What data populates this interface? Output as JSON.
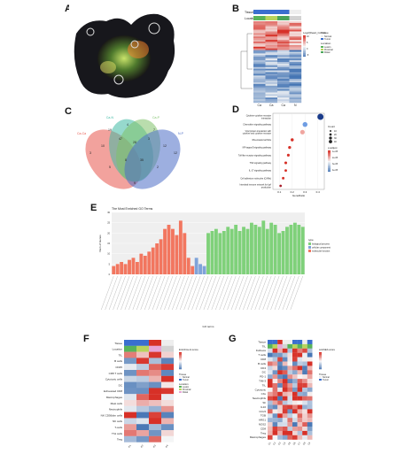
{
  "panels": {
    "a": {
      "letter": "A"
    },
    "b": {
      "letter": "B",
      "row_labels": [
        "Tissue",
        "Location"
      ],
      "col_labels": [
        "Ca",
        "Ca",
        "Ca",
        "N"
      ],
      "legend_title": "Log2(Read_Count)",
      "legend_groups": [
        {
          "title": "Tissue",
          "items": [
            "Normal",
            "Tumor"
          ]
        },
        {
          "title": "Location",
          "items": [
            "Lesion",
            "Proximal",
            "Distal"
          ]
        }
      ],
      "legend_ticks": [
        "10",
        "5",
        "0",
        "-5"
      ]
    },
    "c": {
      "letter": "C",
      "set_labels": [
        "Ca-Ca",
        "Ca-N",
        "Ca-P",
        "N-P"
      ],
      "counts": [
        "3",
        "19",
        "4",
        "7",
        "12",
        "10",
        "47",
        "28",
        "3",
        "12",
        "5",
        "8",
        "35",
        "2",
        "9"
      ]
    },
    "d": {
      "letter": "D",
      "terms": [
        "Cytokine-cytokine receptor interaction",
        "Chemokine signaling pathway",
        "Viral protein interaction with cytokine and cytokine receptor",
        "Rheumatoid arthritis",
        "NF-kappa B signaling pathway",
        "Toll-like receptor signaling pathway",
        "TNF signaling pathway",
        "IL-17 signaling pathway",
        "Cell adhesion molecules (CAMs)",
        "Intestinal immune network for IgA production"
      ],
      "gene_ratio": [
        0.42,
        0.3,
        0.28,
        0.2,
        0.18,
        0.17,
        0.15,
        0.15,
        0.13,
        0.11
      ],
      "count": [
        40,
        25,
        22,
        10,
        9,
        8,
        8,
        7,
        7,
        6
      ],
      "xlabel": "GeneRatio",
      "xticks": [
        "0.1",
        "0.2",
        "0.3",
        "0.4"
      ],
      "size_legend_title": "Count",
      "size_legend": [
        "10",
        "20",
        "30",
        "40"
      ],
      "color_legend_title": "p.adjust",
      "color_legend": [
        "1e-05",
        "2e-05",
        "3e-05",
        "4e-05"
      ]
    },
    "e": {
      "letter": "E",
      "title": "The Most Enriched GO Terms",
      "xlabel": "GO terms",
      "ylabel": "Num of Genes",
      "legend_title": "type",
      "legend_items": [
        "biological process",
        "cellular component",
        "molecular function"
      ],
      "yticks": [
        "0",
        "5",
        "10",
        "15",
        "20",
        "25",
        "30"
      ]
    },
    "f": {
      "letter": "F",
      "row_labels": [
        "Tissue",
        "Location",
        "TIL",
        "B cells",
        "CD45",
        "CD8 T cells",
        "Cytotoxic cells",
        "DC",
        "Exhausted CD8",
        "Macrophages",
        "Mast cells",
        "Neutrophils",
        "NK CD56dim cells",
        "NK cells",
        "T-cells",
        "Th1 cells",
        "Treg"
      ],
      "col_labels": [
        "P1",
        "P2",
        "P3",
        "P4"
      ],
      "legend_title": "Enrichment score",
      "legend_groups": [
        {
          "title": "Tissue",
          "items": [
            "Normal",
            "Tumor"
          ]
        },
        {
          "title": "Location",
          "items": [
            "Lesion",
            "Proximal",
            "Distal"
          ]
        }
      ]
    },
    "g": {
      "letter": "G",
      "row_labels": [
        "Tissue",
        "TIL",
        "Fullness",
        "T cells",
        "CD8",
        "B cells",
        "CD4",
        "DC",
        "PD-1",
        "TIM-3",
        "TIL",
        "Cytotoxic",
        "Cbx",
        "Neutrophils",
        "Sh",
        "IL10",
        "CCL5",
        "TGB",
        "ARG1",
        "NOS2",
        "CD8",
        "Treg",
        "Macrophages"
      ],
      "col_labels": [
        "C1",
        "C2",
        "C3",
        "C4",
        "C5",
        "C6",
        "C7",
        "C8",
        "C9"
      ],
      "legend_title": "ssGSEA score",
      "legend_groups": [
        {
          "title": "Tissue",
          "items": [
            "Normal",
            "Tumor"
          ]
        }
      ]
    },
    "colors": {
      "red": "#d73027",
      "blue": "#4575b4",
      "white": "#f7f7f7",
      "green_bar": "#7fd17a",
      "red_bar": "#f2765f",
      "blue_bar": "#7fa3d9"
    }
  },
  "chart_data": [
    {
      "type": "scatter",
      "title": "",
      "xlabel": "GeneRatio",
      "categories": [
        "Cytokine-cytokine receptor interaction",
        "Chemokine signaling pathway",
        "Viral protein interaction with cytokine and cytokine receptor",
        "Rheumatoid arthritis",
        "NF-kappa B signaling pathway",
        "Toll-like receptor signaling pathway",
        "TNF signaling pathway",
        "IL-17 signaling pathway",
        "Cell adhesion molecules (CAMs)",
        "Intestinal immune network for IgA production"
      ],
      "x": [
        0.42,
        0.3,
        0.28,
        0.2,
        0.18,
        0.17,
        0.15,
        0.15,
        0.13,
        0.11
      ],
      "size": [
        40,
        25,
        22,
        10,
        9,
        8,
        8,
        7,
        7,
        6
      ],
      "xlim": [
        0.05,
        0.45
      ]
    },
    {
      "type": "bar",
      "title": "The Most Enriched GO Terms",
      "xlabel": "GO terms",
      "ylabel": "Num of Genes",
      "ylim": [
        0,
        30
      ],
      "series": [
        {
          "name": "molecular function",
          "values": [
            4,
            5,
            6,
            5,
            7,
            8,
            6,
            10,
            9,
            11,
            13,
            15,
            17,
            22,
            24,
            22,
            19,
            26,
            20,
            8,
            4
          ]
        },
        {
          "name": "cellular component",
          "values": [
            8,
            5,
            4
          ]
        },
        {
          "name": "biological process",
          "values": [
            20,
            21,
            22,
            20,
            21,
            23,
            22,
            24,
            21,
            23,
            22,
            25,
            24,
            23,
            26,
            22,
            25,
            24,
            20,
            21,
            23,
            24,
            25,
            24,
            23
          ]
        }
      ]
    }
  ]
}
